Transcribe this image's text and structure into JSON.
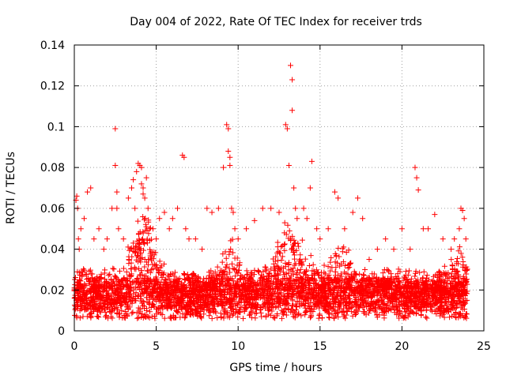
{
  "chart_data": {
    "type": "scatter",
    "title": "Day 004 of 2022, Rate Of TEC Index for receiver trds",
    "xlabel": "GPS time / hours",
    "ylabel": "ROTI / TECUs",
    "xlim": [
      0,
      25
    ],
    "ylim": [
      0,
      0.14
    ],
    "xticks": [
      0,
      5,
      10,
      15,
      20,
      25
    ],
    "yticks": [
      0,
      0.02,
      0.04,
      0.06,
      0.08,
      0.1,
      0.12,
      0.14
    ],
    "xtick_labels": [
      "0",
      "5",
      "10",
      "15",
      "20",
      "25"
    ],
    "ytick_labels": [
      "0",
      "0.02",
      "0.04",
      "0.06",
      "0.08",
      "0.1",
      "0.12",
      "0.14"
    ],
    "grid": true,
    "marker": "+",
    "color": "#ff0000",
    "data_range": [
      0,
      24
    ],
    "series": [
      {
        "x": [
          0.1,
          0.15,
          0.2,
          0.25,
          0.3,
          0.4,
          0.6,
          0.8,
          1.0,
          1.2,
          1.5,
          1.8,
          2.0,
          2.3,
          2.5,
          2.5,
          2.6,
          2.6,
          2.7,
          3.0,
          3.3,
          3.5,
          3.6,
          3.7,
          3.8,
          3.9,
          4.0,
          4.1,
          4.1,
          4.2,
          4.2,
          4.3,
          4.4,
          4.5,
          4.6,
          4.8,
          5.0,
          5.2,
          5.5,
          5.8,
          6.0,
          6.3,
          6.6,
          6.7,
          6.8,
          7.0,
          7.4,
          7.8,
          8.1,
          8.4,
          8.8,
          9.1,
          9.3,
          9.4,
          9.4,
          9.5,
          9.5,
          9.6,
          9.7,
          9.8,
          10.0,
          10.5,
          11.0,
          11.5,
          12.0,
          12.5,
          12.9,
          13.0,
          13.1,
          13.2,
          13.3,
          13.3,
          13.4,
          13.5,
          13.6,
          14.0,
          14.2,
          14.4,
          14.5,
          14.8,
          15.0,
          15.5,
          15.9,
          16.1,
          16.5,
          17.0,
          17.3,
          17.6,
          18.0,
          18.5,
          19.0,
          19.5,
          20.0,
          20.5,
          20.8,
          20.9,
          21.0,
          21.3,
          21.6,
          22.0,
          22.5,
          23.0,
          23.2,
          23.5,
          23.6,
          23.7,
          23.8,
          23.9
        ],
        "y": [
          0.064,
          0.066,
          0.06,
          0.045,
          0.04,
          0.05,
          0.055,
          0.068,
          0.07,
          0.045,
          0.05,
          0.04,
          0.045,
          0.06,
          0.099,
          0.081,
          0.068,
          0.06,
          0.05,
          0.045,
          0.065,
          0.07,
          0.074,
          0.06,
          0.078,
          0.082,
          0.081,
          0.08,
          0.072,
          0.067,
          0.07,
          0.065,
          0.075,
          0.06,
          0.05,
          0.05,
          0.045,
          0.055,
          0.058,
          0.05,
          0.055,
          0.06,
          0.086,
          0.085,
          0.05,
          0.045,
          0.045,
          0.04,
          0.06,
          0.058,
          0.06,
          0.08,
          0.101,
          0.099,
          0.088,
          0.085,
          0.081,
          0.06,
          0.058,
          0.05,
          0.045,
          0.05,
          0.054,
          0.06,
          0.06,
          0.058,
          0.101,
          0.099,
          0.081,
          0.13,
          0.123,
          0.108,
          0.07,
          0.06,
          0.055,
          0.06,
          0.055,
          0.07,
          0.083,
          0.05,
          0.045,
          0.05,
          0.068,
          0.065,
          0.05,
          0.058,
          0.065,
          0.055,
          0.035,
          0.04,
          0.045,
          0.04,
          0.05,
          0.04,
          0.08,
          0.075,
          0.069,
          0.05,
          0.05,
          0.057,
          0.045,
          0.04,
          0.045,
          0.05,
          0.06,
          0.059,
          0.055,
          0.045
        ]
      }
    ]
  }
}
